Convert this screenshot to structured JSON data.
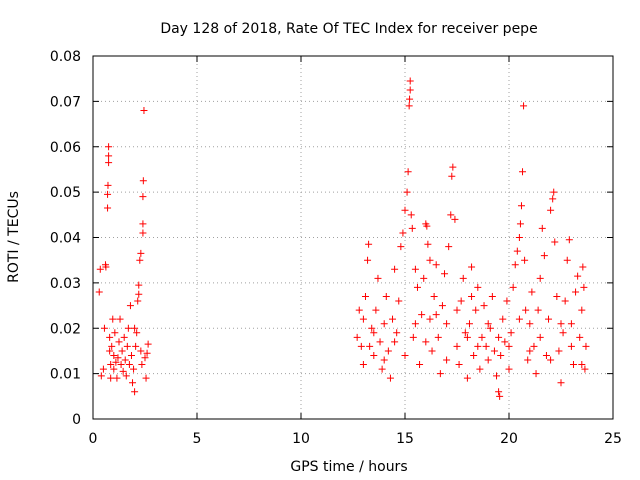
{
  "chart_data": {
    "type": "scatter",
    "title": "Day 128 of 2018, Rate Of TEC Index for receiver pepe",
    "xlabel": "GPS time / hours",
    "ylabel": "ROTI / TECUs",
    "xlim": [
      0,
      25
    ],
    "ylim": [
      0,
      0.08
    ],
    "xticks": [
      0,
      5,
      10,
      15,
      20,
      25
    ],
    "xtick_labels": [
      "0",
      "5",
      "10",
      "15",
      "20",
      "25"
    ],
    "yticks": [
      0,
      0.01,
      0.02,
      0.03,
      0.04,
      0.05,
      0.06,
      0.07,
      0.08
    ],
    "ytick_labels": [
      "0",
      "0.01",
      "0.02",
      "0.03",
      "0.04",
      "0.05",
      "0.06",
      "0.07",
      "0.08"
    ],
    "grid": true,
    "marker": "+",
    "color": "#ff0000",
    "series": [
      {
        "name": "ROTI",
        "points": [
          [
            0.3,
            0.028
          ],
          [
            0.35,
            0.033
          ],
          [
            0.4,
            0.0095
          ],
          [
            0.5,
            0.011
          ],
          [
            0.55,
            0.02
          ],
          [
            0.6,
            0.034
          ],
          [
            0.62,
            0.0335
          ],
          [
            0.7,
            0.0465
          ],
          [
            0.7,
            0.0495
          ],
          [
            0.72,
            0.0515
          ],
          [
            0.75,
            0.0565
          ],
          [
            0.75,
            0.058
          ],
          [
            0.75,
            0.06
          ],
          [
            0.8,
            0.018
          ],
          [
            0.8,
            0.015
          ],
          [
            0.85,
            0.012
          ],
          [
            0.85,
            0.009
          ],
          [
            0.9,
            0.016
          ],
          [
            0.95,
            0.022
          ],
          [
            1.0,
            0.014
          ],
          [
            1.0,
            0.011
          ],
          [
            1.05,
            0.019
          ],
          [
            1.1,
            0.0125
          ],
          [
            1.15,
            0.009
          ],
          [
            1.2,
            0.0135
          ],
          [
            1.25,
            0.017
          ],
          [
            1.3,
            0.022
          ],
          [
            1.35,
            0.012
          ],
          [
            1.4,
            0.015
          ],
          [
            1.45,
            0.0105
          ],
          [
            1.5,
            0.018
          ],
          [
            1.55,
            0.013
          ],
          [
            1.6,
            0.0095
          ],
          [
            1.65,
            0.016
          ],
          [
            1.7,
            0.02
          ],
          [
            1.75,
            0.012
          ],
          [
            1.8,
            0.025
          ],
          [
            1.85,
            0.014
          ],
          [
            1.9,
            0.008
          ],
          [
            1.95,
            0.011
          ],
          [
            2.0,
            0.006
          ],
          [
            2.05,
            0.016
          ],
          [
            2.1,
            0.019
          ],
          [
            2.15,
            0.026
          ],
          [
            2.2,
            0.0275
          ],
          [
            2.2,
            0.0295
          ],
          [
            2.25,
            0.035
          ],
          [
            2.3,
            0.0365
          ],
          [
            2.3,
            0.015
          ],
          [
            2.35,
            0.012
          ],
          [
            2.4,
            0.041
          ],
          [
            2.4,
            0.043
          ],
          [
            2.4,
            0.049
          ],
          [
            2.42,
            0.0525
          ],
          [
            2.45,
            0.068
          ],
          [
            2.5,
            0.0135
          ],
          [
            2.55,
            0.009
          ],
          [
            2.6,
            0.0145
          ],
          [
            2.65,
            0.0165
          ],
          [
            2.0,
            0.02
          ],
          [
            12.7,
            0.018
          ],
          [
            12.8,
            0.024
          ],
          [
            12.9,
            0.016
          ],
          [
            13.0,
            0.012
          ],
          [
            13.1,
            0.027
          ],
          [
            13.2,
            0.035
          ],
          [
            13.25,
            0.0385
          ],
          [
            13.3,
            0.016
          ],
          [
            13.4,
            0.02
          ],
          [
            13.5,
            0.014
          ],
          [
            13.6,
            0.024
          ],
          [
            13.7,
            0.031
          ],
          [
            13.8,
            0.017
          ],
          [
            13.9,
            0.011
          ],
          [
            14.0,
            0.021
          ],
          [
            14.1,
            0.027
          ],
          [
            14.2,
            0.015
          ],
          [
            14.3,
            0.009
          ],
          [
            14.4,
            0.022
          ],
          [
            14.5,
            0.033
          ],
          [
            14.6,
            0.019
          ],
          [
            14.7,
            0.026
          ],
          [
            14.8,
            0.038
          ],
          [
            14.9,
            0.041
          ],
          [
            15.0,
            0.046
          ],
          [
            15.1,
            0.05
          ],
          [
            15.15,
            0.0545
          ],
          [
            15.2,
            0.069
          ],
          [
            15.22,
            0.0705
          ],
          [
            15.25,
            0.0725
          ],
          [
            15.25,
            0.0745
          ],
          [
            15.3,
            0.045
          ],
          [
            15.35,
            0.042
          ],
          [
            15.4,
            0.018
          ],
          [
            15.5,
            0.033
          ],
          [
            15.6,
            0.029
          ],
          [
            15.7,
            0.012
          ],
          [
            15.8,
            0.023
          ],
          [
            15.9,
            0.031
          ],
          [
            16.0,
            0.043
          ],
          [
            16.05,
            0.0425
          ],
          [
            16.1,
            0.0385
          ],
          [
            16.2,
            0.022
          ],
          [
            16.3,
            0.015
          ],
          [
            16.4,
            0.027
          ],
          [
            16.5,
            0.034
          ],
          [
            16.6,
            0.018
          ],
          [
            16.7,
            0.01
          ],
          [
            16.8,
            0.025
          ],
          [
            16.9,
            0.032
          ],
          [
            17.0,
            0.021
          ],
          [
            17.1,
            0.038
          ],
          [
            17.2,
            0.045
          ],
          [
            17.25,
            0.0535
          ],
          [
            17.3,
            0.0555
          ],
          [
            17.4,
            0.044
          ],
          [
            17.5,
            0.016
          ],
          [
            17.6,
            0.012
          ],
          [
            17.7,
            0.026
          ],
          [
            17.8,
            0.031
          ],
          [
            17.9,
            0.019
          ],
          [
            18.0,
            0.009
          ],
          [
            18.1,
            0.021
          ],
          [
            18.2,
            0.027
          ],
          [
            18.3,
            0.014
          ],
          [
            18.4,
            0.024
          ],
          [
            18.5,
            0.029
          ],
          [
            18.6,
            0.011
          ],
          [
            18.7,
            0.018
          ],
          [
            18.8,
            0.025
          ],
          [
            18.9,
            0.016
          ],
          [
            19.0,
            0.013
          ],
          [
            19.1,
            0.02
          ],
          [
            19.2,
            0.027
          ],
          [
            19.3,
            0.015
          ],
          [
            19.4,
            0.0095
          ],
          [
            19.5,
            0.006
          ],
          [
            19.55,
            0.005
          ],
          [
            19.6,
            0.014
          ],
          [
            19.7,
            0.022
          ],
          [
            19.8,
            0.017
          ],
          [
            19.9,
            0.026
          ],
          [
            20.0,
            0.011
          ],
          [
            20.1,
            0.019
          ],
          [
            20.2,
            0.029
          ],
          [
            20.3,
            0.034
          ],
          [
            20.4,
            0.037
          ],
          [
            20.5,
            0.04
          ],
          [
            20.55,
            0.043
          ],
          [
            20.6,
            0.047
          ],
          [
            20.65,
            0.0545
          ],
          [
            20.7,
            0.069
          ],
          [
            20.75,
            0.035
          ],
          [
            20.8,
            0.024
          ],
          [
            20.9,
            0.013
          ],
          [
            21.0,
            0.021
          ],
          [
            21.1,
            0.028
          ],
          [
            21.2,
            0.016
          ],
          [
            21.3,
            0.01
          ],
          [
            21.4,
            0.024
          ],
          [
            21.5,
            0.031
          ],
          [
            21.6,
            0.042
          ],
          [
            21.7,
            0.036
          ],
          [
            21.8,
            0.014
          ],
          [
            21.9,
            0.022
          ],
          [
            22.0,
            0.046
          ],
          [
            22.1,
            0.0485
          ],
          [
            22.15,
            0.05
          ],
          [
            22.2,
            0.039
          ],
          [
            22.3,
            0.027
          ],
          [
            22.4,
            0.015
          ],
          [
            22.5,
            0.008
          ],
          [
            22.6,
            0.019
          ],
          [
            22.7,
            0.026
          ],
          [
            22.8,
            0.035
          ],
          [
            22.9,
            0.0395
          ],
          [
            23.0,
            0.021
          ],
          [
            23.1,
            0.012
          ],
          [
            23.2,
            0.028
          ],
          [
            23.3,
            0.0315
          ],
          [
            23.4,
            0.018
          ],
          [
            23.5,
            0.024
          ],
          [
            23.55,
            0.0335
          ],
          [
            23.6,
            0.029
          ],
          [
            23.65,
            0.011
          ],
          [
            23.7,
            0.016
          ],
          [
            13.0,
            0.022
          ],
          [
            13.5,
            0.019
          ],
          [
            14.0,
            0.013
          ],
          [
            14.5,
            0.017
          ],
          [
            15.0,
            0.014
          ],
          [
            15.5,
            0.021
          ],
          [
            16.0,
            0.017
          ],
          [
            16.5,
            0.023
          ],
          [
            17.0,
            0.013
          ],
          [
            17.5,
            0.024
          ],
          [
            18.0,
            0.018
          ],
          [
            18.5,
            0.016
          ],
          [
            19.0,
            0.021
          ],
          [
            19.5,
            0.018
          ],
          [
            20.0,
            0.016
          ],
          [
            20.5,
            0.022
          ],
          [
            21.0,
            0.015
          ],
          [
            21.5,
            0.018
          ],
          [
            22.0,
            0.013
          ],
          [
            22.5,
            0.021
          ],
          [
            23.0,
            0.016
          ],
          [
            23.5,
            0.012
          ],
          [
            16.2,
            0.035
          ],
          [
            18.2,
            0.0335
          ]
        ]
      }
    ]
  }
}
